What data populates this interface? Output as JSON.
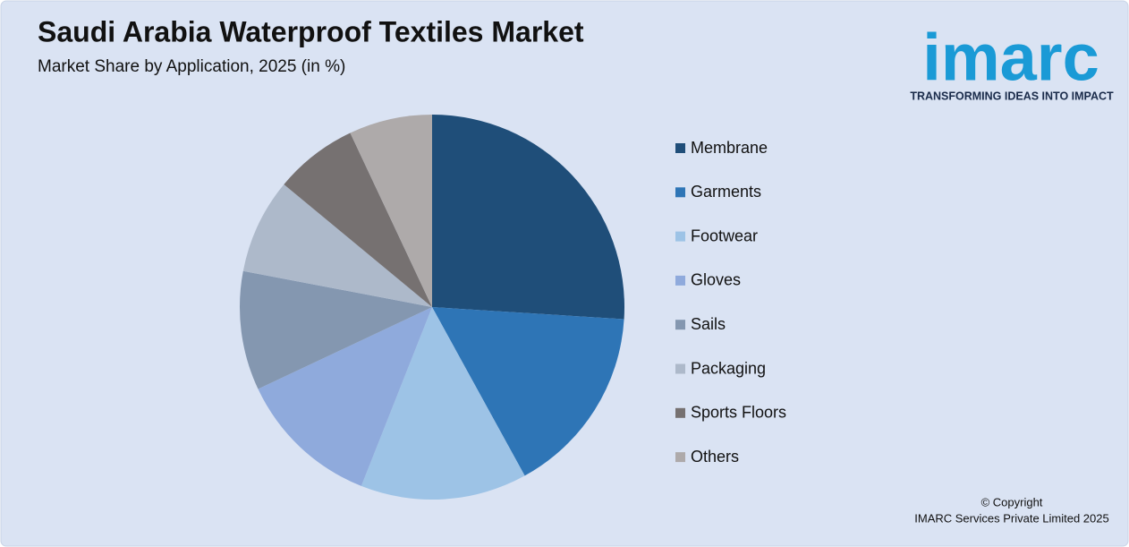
{
  "chart_data": {
    "type": "pie",
    "title": "Saudi Arabia Waterproof Textiles Market",
    "subtitle": "Market Share by Application, 2025 (in %)",
    "categories": [
      "Membrane",
      "Garments",
      "Footwear",
      "Gloves",
      "Sails",
      "Packaging",
      "Sports Floors",
      "Others"
    ],
    "values": [
      26,
      16,
      14,
      12,
      10,
      8,
      7,
      7
    ],
    "colors": [
      "#1f4e79",
      "#2e75b6",
      "#9dc3e6",
      "#8faadc",
      "#8497b0",
      "#adb9ca",
      "#767171",
      "#aeaaaa"
    ],
    "legend": "right"
  },
  "logo": {
    "name": "imarc",
    "tagline": "TRANSFORMING IDEAS INTO IMPACT"
  },
  "footer": {
    "copyright": "© Copyright",
    "company": "IMARC Services Private Limited 2025"
  }
}
